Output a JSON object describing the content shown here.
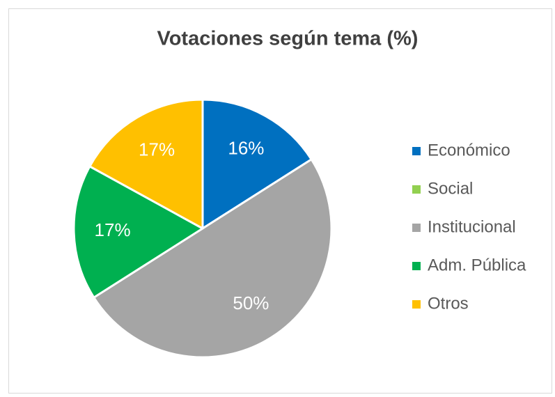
{
  "chart_data": {
    "type": "pie",
    "title": "Votaciones según tema (%)",
    "categories": [
      "Económico",
      "Social",
      "Institucional",
      "Adm. Pública",
      "Otros"
    ],
    "values": [
      16,
      0,
      50,
      17,
      17
    ],
    "value_labels": [
      "16%",
      null,
      "50%",
      "17%",
      "17%"
    ],
    "colors": [
      "#0070c0",
      "#92d050",
      "#a5a5a5",
      "#00b050",
      "#ffc000"
    ],
    "legend": "right"
  }
}
